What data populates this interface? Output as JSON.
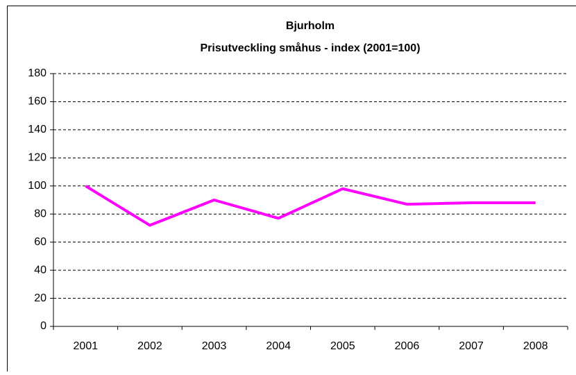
{
  "chart_data": {
    "type": "line",
    "title": "Bjurholm",
    "subtitle": "Prisutveckling småhus - index (2001=100)",
    "categories": [
      "2001",
      "2002",
      "2003",
      "2004",
      "2005",
      "2006",
      "2007",
      "2008"
    ],
    "values": [
      100,
      72,
      90,
      77,
      98,
      87,
      88,
      88
    ],
    "color": "#ff00ff",
    "ylim": [
      0,
      180
    ],
    "yticks": [
      0,
      20,
      40,
      60,
      80,
      100,
      120,
      140,
      160,
      180
    ],
    "grid": true
  }
}
